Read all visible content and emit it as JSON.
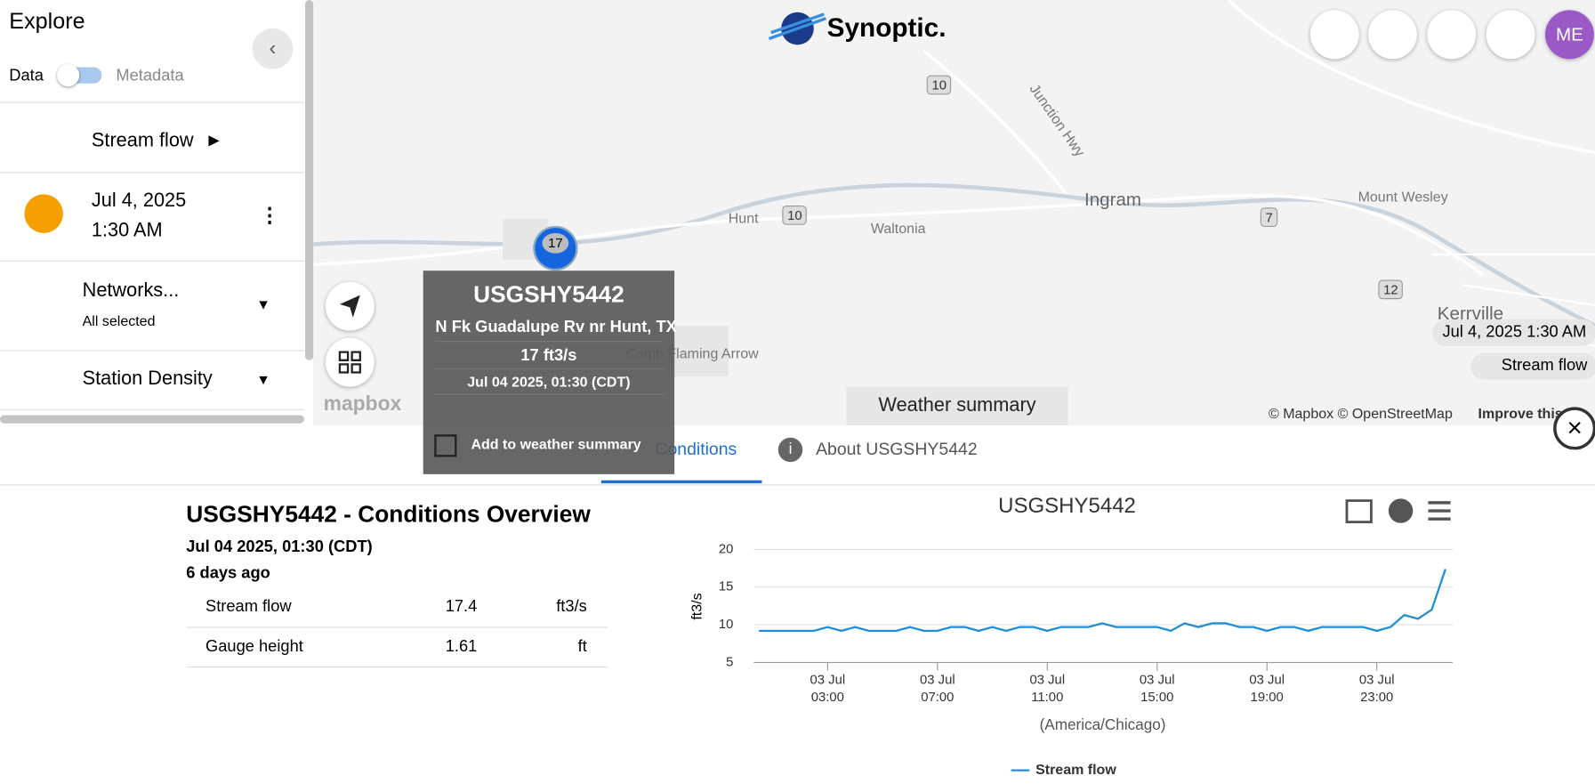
{
  "sidebar": {
    "title": "Explore",
    "toggle_left": "Data",
    "toggle_right": "Metadata",
    "variable": "Stream flow",
    "date": "Jul 4, 2025",
    "time": "1:30 AM",
    "networks": "Networks...",
    "networks_sub": "All selected",
    "density": "Station Density"
  },
  "map": {
    "brand": "Synoptic.",
    "labels": [
      {
        "text": "Junction Hwy"
      },
      {
        "text": "Hunt"
      },
      {
        "text": "Waltonia"
      },
      {
        "text": "Ingram"
      },
      {
        "text": "Mount Wesley"
      },
      {
        "text": "Kerrville"
      },
      {
        "text": "Camp Flaming Arrow"
      }
    ],
    "shields": [
      "10",
      "10",
      "7",
      "12"
    ],
    "marker": "17",
    "mapbox": "mapbox",
    "attribution": "© Mapbox © OpenStreetMap",
    "improve": "Improve this",
    "time_badge": "Jul 4, 2025 1:30 AM",
    "variable_badge": "Stream flow",
    "weather_summary": "Weather summary",
    "user": "ME"
  },
  "popup": {
    "station": "USGSHY5442",
    "name": "N Fk Guadalupe Rv nr Hunt, TX",
    "value": "17 ft3/s",
    "time": "Jul 04 2025, 01:30 (CDT)",
    "checkbox": "Add to weather summary"
  },
  "tabs": [
    "Conditions",
    "About USGSHY5442"
  ],
  "overview": {
    "title": "USGSHY5442 - Conditions Overview",
    "time": "Jul 04 2025, 01:30 (CDT)",
    "ago": "6 days ago",
    "rows": [
      [
        "Stream flow",
        "17.4",
        "ft3/s"
      ],
      [
        "Gauge height",
        "1.61",
        "ft"
      ]
    ]
  },
  "chart_data": {
    "type": "line",
    "title": "USGSHY5442",
    "y_label": "ft3/s",
    "x_label": "(America/Chicago)",
    "x": [
      0.5,
      1,
      1.5,
      2,
      2.5,
      3,
      3.5,
      4,
      4.5,
      5,
      5.5,
      6,
      6.5,
      7,
      7.5,
      8,
      8.5,
      9,
      9.5,
      10,
      10.5,
      11,
      11.5,
      12,
      12.5,
      13,
      13.5,
      14,
      14.5,
      15,
      15.5,
      16,
      16.5,
      17,
      17.5,
      18,
      18.5,
      19,
      19.5,
      20,
      20.5,
      21,
      21.5,
      22,
      22.5,
      23,
      23.5,
      24,
      24.5,
      25,
      25.5
    ],
    "series": [
      {
        "name": "Stream flow",
        "color": "#1f8ed6",
        "values": [
          9.2,
          9.2,
          9.2,
          9.2,
          9.2,
          9.7,
          9.2,
          9.7,
          9.2,
          9.2,
          9.2,
          9.7,
          9.2,
          9.2,
          9.7,
          9.7,
          9.2,
          9.7,
          9.2,
          9.7,
          9.7,
          9.2,
          9.7,
          9.7,
          9.7,
          10.2,
          9.7,
          9.7,
          9.7,
          9.7,
          9.2,
          10.2,
          9.7,
          10.2,
          10.2,
          9.7,
          9.7,
          9.2,
          9.7,
          9.7,
          9.2,
          9.7,
          9.7,
          9.7,
          9.7,
          9.2,
          9.7,
          11.3,
          10.8,
          12,
          17.4
        ]
      }
    ],
    "xlim": [
      0.31,
      25.76
    ],
    "xticks": [
      {
        "value": 3,
        "label": "03 Jul 03:00"
      },
      {
        "value": 7,
        "label": "03 Jul 07:00"
      },
      {
        "value": 11,
        "label": "03 Jul 11:00"
      },
      {
        "value": 15,
        "label": "03 Jul 15:00"
      },
      {
        "value": 19,
        "label": "03 Jul 19:00"
      },
      {
        "value": 23,
        "label": "03 Jul 23:00"
      }
    ],
    "ylim": [
      5,
      20
    ],
    "yticks": [
      5,
      10,
      15,
      20
    ],
    "grid": true
  }
}
